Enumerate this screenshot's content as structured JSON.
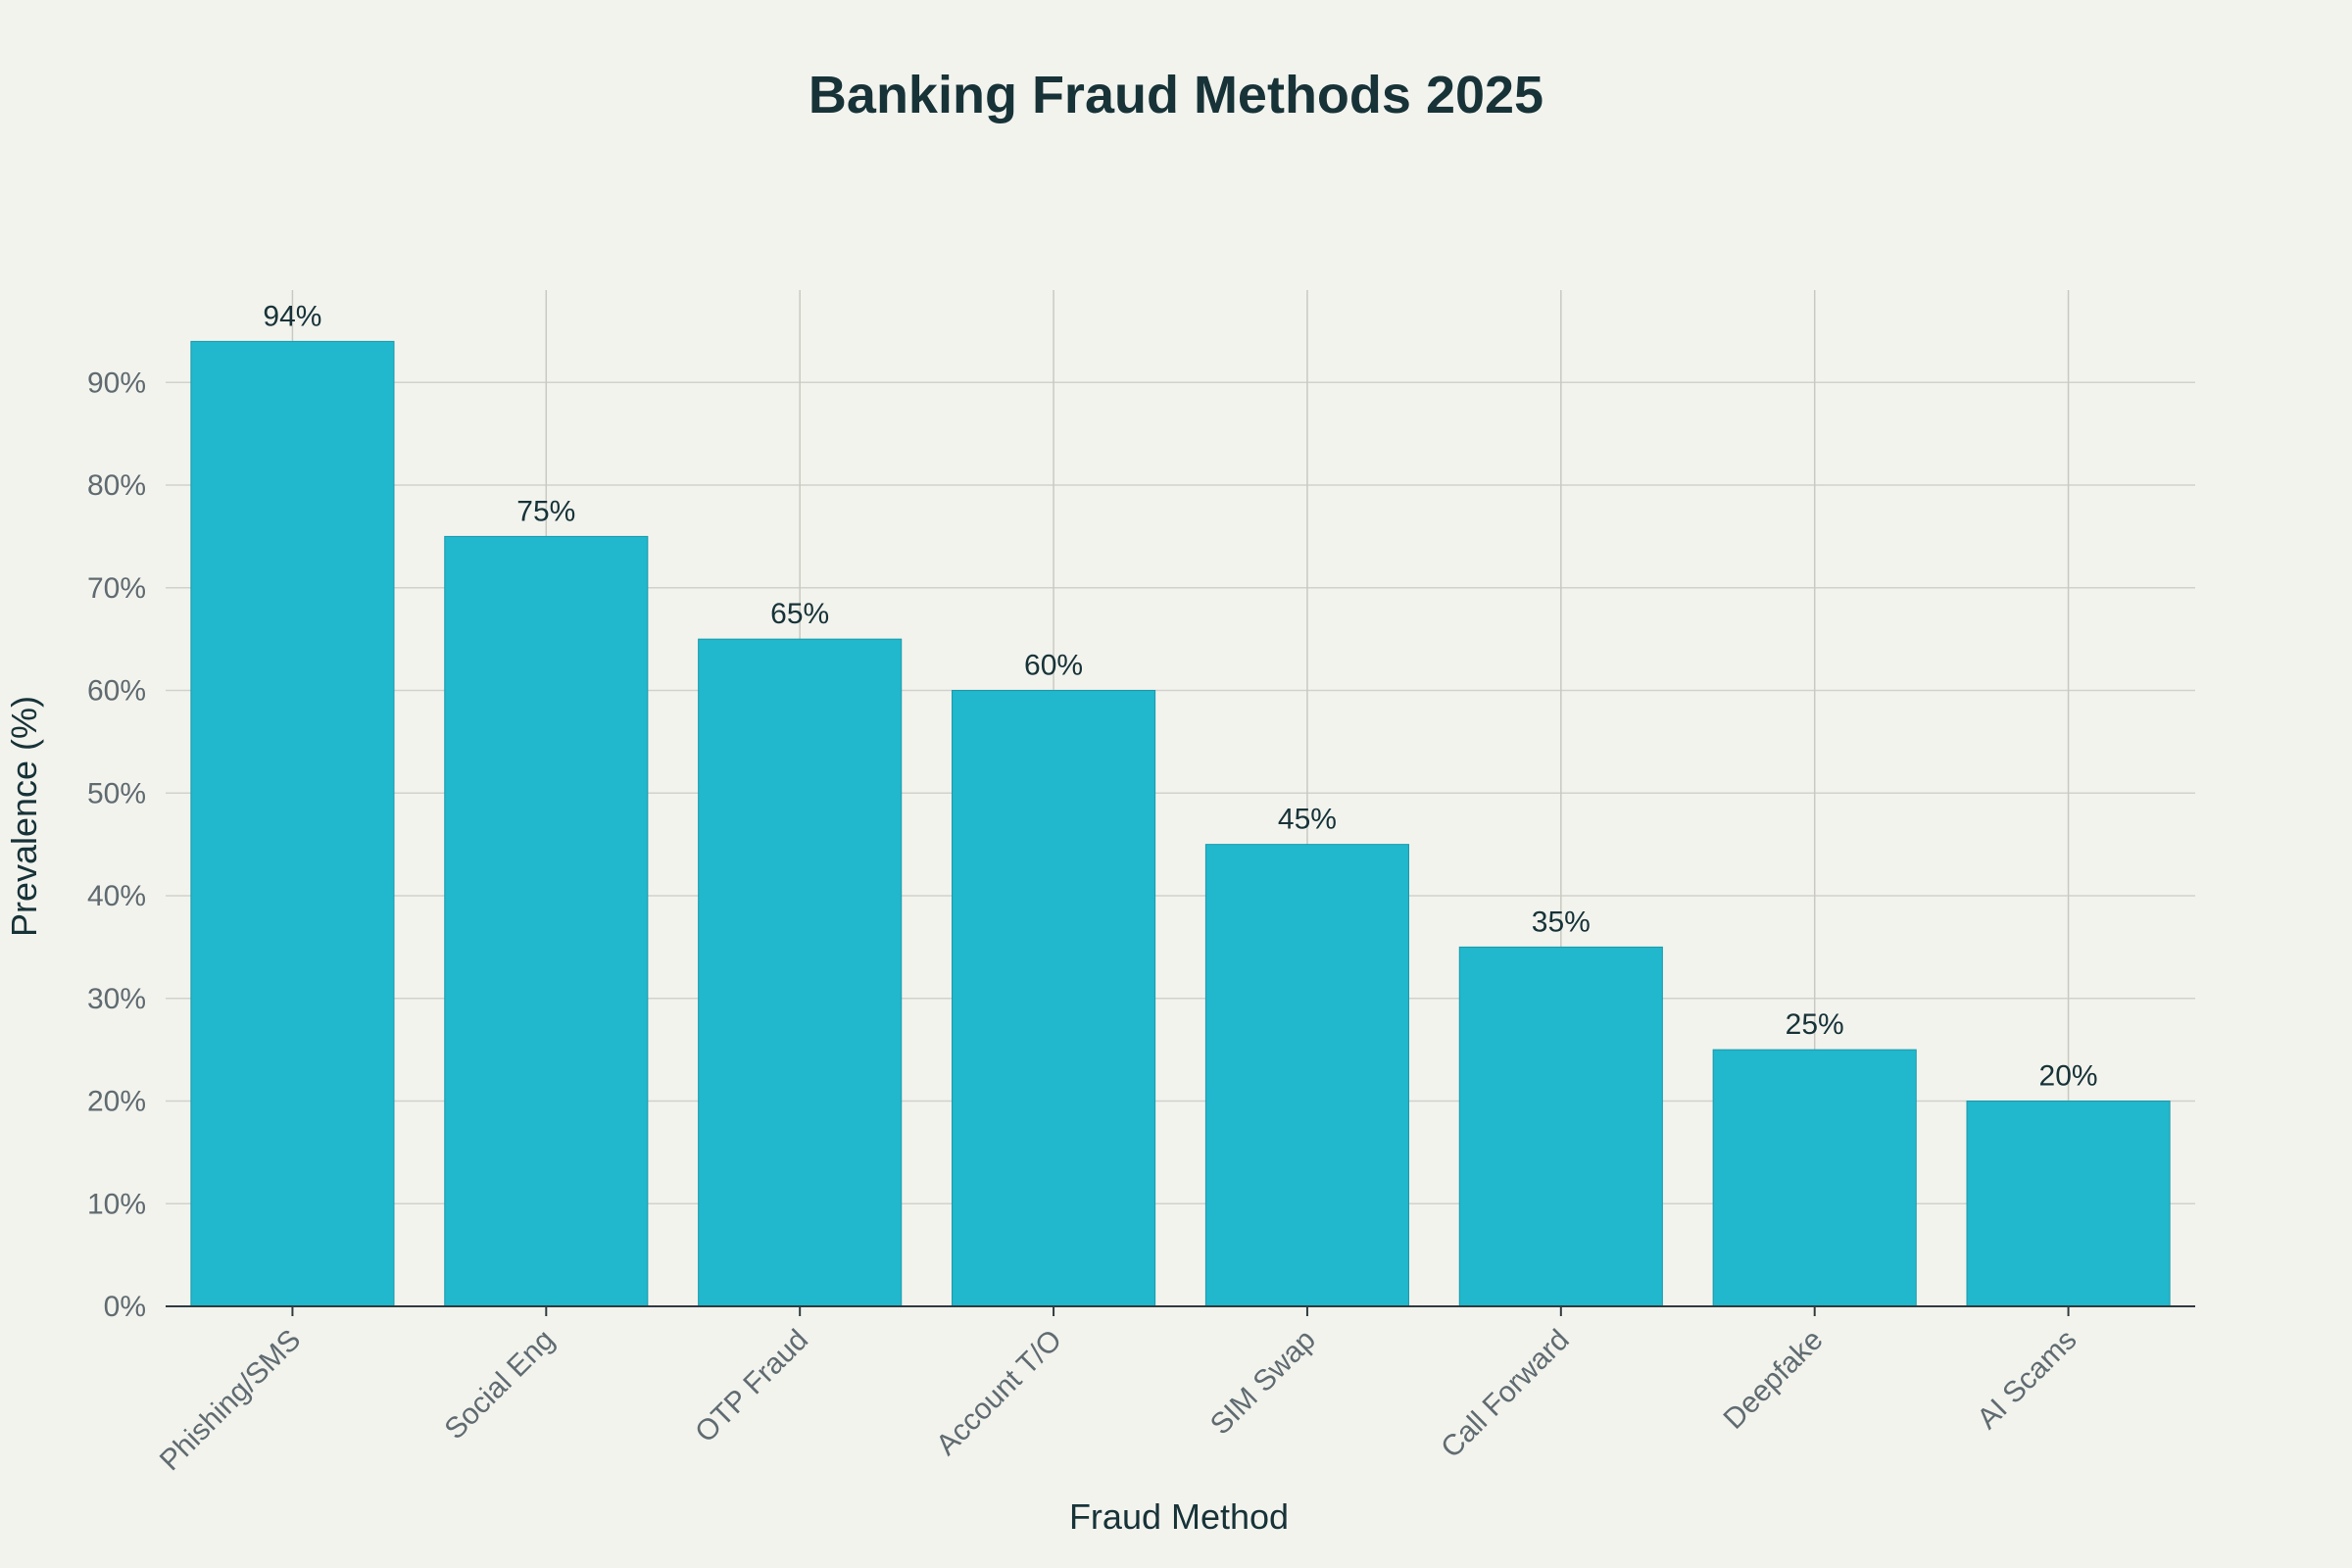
{
  "chart_data": {
    "type": "bar",
    "title": "Banking Fraud Methods 2025",
    "xlabel": "Fraud Method",
    "ylabel": "Prevalence (%)",
    "categories": [
      "Phishing/SMS",
      "Social Eng",
      "OTP Fraud",
      "Account T/O",
      "SIM Swap",
      "Call Forward",
      "Deepfake",
      "AI Scams"
    ],
    "values": [
      94,
      75,
      65,
      60,
      45,
      35,
      25,
      20
    ],
    "data_labels": [
      "94%",
      "75%",
      "65%",
      "60%",
      "45%",
      "35%",
      "25%",
      "20%"
    ],
    "ylim": [
      0,
      99
    ],
    "yticks": [
      0,
      10,
      20,
      30,
      40,
      50,
      60,
      70,
      80,
      90
    ],
    "ytick_labels": [
      "0%",
      "10%",
      "20%",
      "30%",
      "40%",
      "50%",
      "60%",
      "70%",
      "80%",
      "90%"
    ],
    "grid": true,
    "legend": "none",
    "bar_color": "#21b7cc"
  }
}
